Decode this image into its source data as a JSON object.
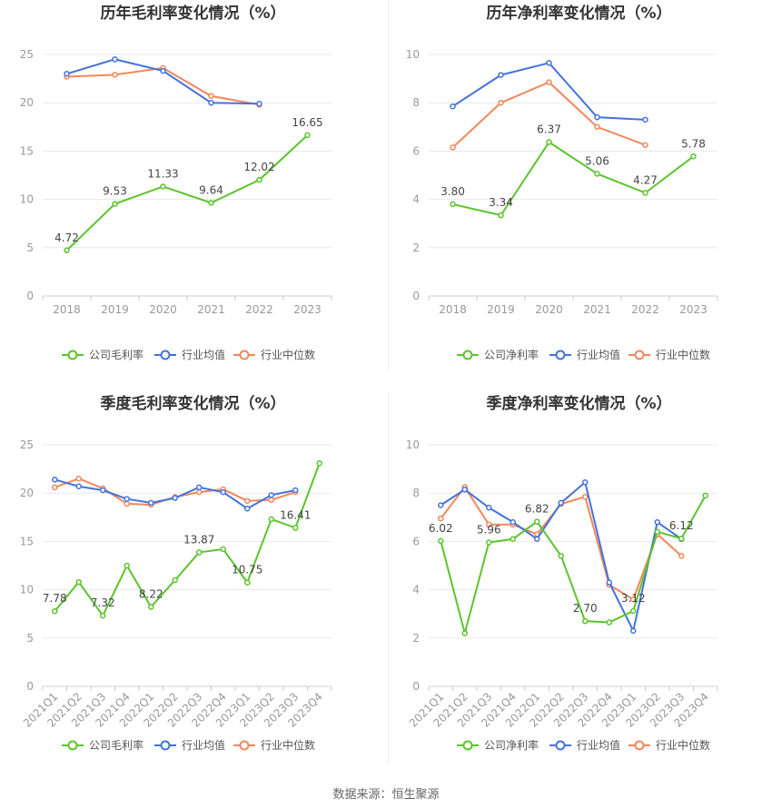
{
  "colors": {
    "company": "#5bc42c",
    "avg": "#4472dc",
    "median": "#f2875a",
    "grid": "#e8e8e8",
    "axis": "#999999",
    "label": "#444444"
  },
  "source_label": "数据来源：恒生聚源",
  "chart_data": [
    {
      "type": "line",
      "title": "历年毛利率变化情况（%）",
      "categories": [
        "2018",
        "2019",
        "2020",
        "2021",
        "2022",
        "2023"
      ],
      "ylim": [
        0,
        25
      ],
      "yticks": [
        "0",
        "5",
        "10",
        "15",
        "20",
        "25"
      ],
      "rotate_xlabels": false,
      "series": [
        {
          "name": "公司毛利率",
          "color_key": "company",
          "values": [
            4.72,
            9.53,
            11.33,
            9.64,
            12.02,
            16.65
          ],
          "labels": [
            "4.72",
            "9.53",
            "11.33",
            "9.64",
            "12.02",
            "16.65"
          ]
        },
        {
          "name": "行业均值",
          "color_key": "avg",
          "values": [
            23.0,
            24.5,
            23.3,
            20.0,
            19.9,
            null
          ],
          "labels": []
        },
        {
          "name": "行业中位数",
          "color_key": "median",
          "values": [
            22.7,
            22.9,
            23.6,
            20.7,
            19.8,
            null
          ],
          "labels": []
        }
      ]
    },
    {
      "type": "line",
      "title": "历年净利率变化情况（%）",
      "categories": [
        "2018",
        "2019",
        "2020",
        "2021",
        "2022",
        "2023"
      ],
      "ylim": [
        0,
        10
      ],
      "yticks": [
        "0",
        "2",
        "4",
        "6",
        "8",
        "10"
      ],
      "rotate_xlabels": false,
      "series": [
        {
          "name": "公司净利率",
          "color_key": "company",
          "values": [
            3.8,
            3.34,
            6.37,
            5.06,
            4.27,
            5.78
          ],
          "labels": [
            "3.80",
            "3.34",
            "6.37",
            "5.06",
            "4.27",
            "5.78"
          ]
        },
        {
          "name": "行业均值",
          "color_key": "avg",
          "values": [
            7.85,
            9.15,
            9.65,
            7.4,
            7.3,
            null
          ],
          "labels": []
        },
        {
          "name": "行业中位数",
          "color_key": "median",
          "values": [
            6.15,
            8.0,
            8.85,
            7.0,
            6.25,
            null
          ],
          "labels": []
        }
      ]
    },
    {
      "type": "line",
      "title": "季度毛利率变化情况（%）",
      "categories": [
        "2021Q1",
        "2021Q2",
        "2021Q3",
        "2021Q4",
        "2022Q1",
        "2022Q2",
        "2022Q3",
        "2022Q4",
        "2023Q1",
        "2023Q2",
        "2023Q3",
        "2023Q4"
      ],
      "ylim": [
        0,
        25
      ],
      "yticks": [
        "0",
        "5",
        "10",
        "15",
        "20",
        "25"
      ],
      "rotate_xlabels": true,
      "series": [
        {
          "name": "公司毛利率",
          "color_key": "company",
          "values": [
            7.78,
            10.8,
            7.32,
            12.5,
            8.22,
            11.0,
            13.87,
            14.2,
            10.75,
            17.3,
            16.41,
            23.1
          ],
          "labels": [
            "7.78",
            "",
            "7.32",
            "",
            "8.22",
            "",
            "13.87",
            "",
            "10.75",
            "",
            "16.41",
            ""
          ]
        },
        {
          "name": "行业均值",
          "color_key": "avg",
          "values": [
            21.4,
            20.7,
            20.3,
            19.4,
            19.0,
            19.5,
            20.6,
            20.1,
            18.4,
            19.8,
            20.3,
            null
          ],
          "labels": []
        },
        {
          "name": "行业中位数",
          "color_key": "median",
          "values": [
            20.6,
            21.5,
            20.5,
            18.9,
            18.8,
            19.6,
            20.1,
            20.4,
            19.2,
            19.3,
            20.1,
            null
          ],
          "labels": []
        }
      ]
    },
    {
      "type": "line",
      "title": "季度净利率变化情况（%）",
      "categories": [
        "2021Q1",
        "2021Q2",
        "2021Q3",
        "2021Q4",
        "2022Q1",
        "2022Q2",
        "2022Q3",
        "2022Q4",
        "2023Q1",
        "2023Q2",
        "2023Q3",
        "2023Q4"
      ],
      "ylim": [
        0,
        10
      ],
      "yticks": [
        "0",
        "2",
        "4",
        "6",
        "8",
        "10"
      ],
      "rotate_xlabels": true,
      "series": [
        {
          "name": "公司净利率",
          "color_key": "company",
          "values": [
            6.02,
            2.2,
            5.96,
            6.1,
            6.82,
            5.4,
            2.7,
            2.65,
            3.12,
            6.4,
            6.12,
            7.9
          ],
          "labels": [
            "6.02",
            "",
            "5.96",
            "",
            "6.82",
            "",
            "2.70",
            "",
            "3.12",
            "",
            "6.12",
            ""
          ]
        },
        {
          "name": "行业均值",
          "color_key": "avg",
          "values": [
            7.5,
            8.15,
            7.4,
            6.8,
            6.1,
            7.6,
            8.45,
            4.3,
            2.3,
            6.8,
            6.1,
            null
          ],
          "labels": []
        },
        {
          "name": "行业中位数",
          "color_key": "median",
          "values": [
            6.95,
            8.25,
            6.7,
            6.7,
            6.3,
            7.55,
            7.85,
            4.2,
            3.6,
            6.3,
            5.4,
            null
          ],
          "labels": []
        }
      ]
    }
  ]
}
